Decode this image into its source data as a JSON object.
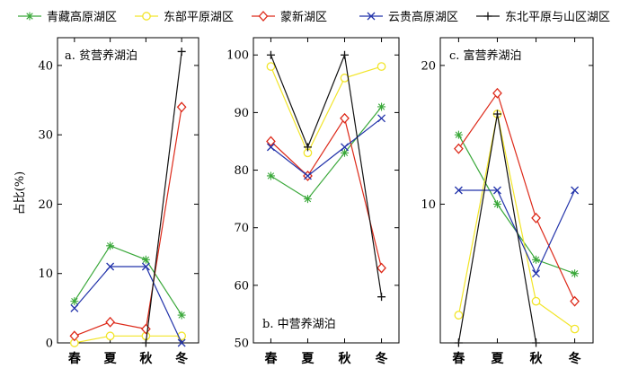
{
  "legend": [
    {
      "name": "青藏高原湖区",
      "color": "#3aa83a",
      "marker": "asterisk"
    },
    {
      "name": "东部平原湖区",
      "color": "#f2e52a",
      "marker": "circle"
    },
    {
      "name": "蒙新湖区",
      "color": "#dd2a1a",
      "marker": "diamond"
    },
    {
      "name": "云贵高原湖区",
      "color": "#2233aa",
      "marker": "x"
    },
    {
      "name": "东北平原与山区湖区",
      "color": "#111111",
      "marker": "plus"
    }
  ],
  "ylabel": "占比(%)",
  "chart_data": [
    {
      "type": "line",
      "title": "a. 贫营养湖泊",
      "categories": [
        "春",
        "夏",
        "秋",
        "冬"
      ],
      "ylim": [
        0,
        44
      ],
      "yticks": [
        0,
        10,
        20,
        30,
        40
      ],
      "series": [
        {
          "name": "青藏高原湖区",
          "values": [
            6,
            14,
            12,
            4
          ]
        },
        {
          "name": "东部平原湖区",
          "values": [
            0,
            1,
            1,
            1
          ]
        },
        {
          "name": "蒙新湖区",
          "values": [
            1,
            3,
            2,
            34
          ]
        },
        {
          "name": "云贵高原湖区",
          "values": [
            5,
            11,
            11,
            0
          ]
        },
        {
          "name": "东北平原与山区湖区",
          "values": [
            null,
            null,
            0,
            42
          ]
        }
      ]
    },
    {
      "type": "line",
      "title": "b. 中营养湖泊",
      "categories": [
        "春",
        "夏",
        "秋",
        "冬"
      ],
      "ylim": [
        50,
        103
      ],
      "yticks": [
        50,
        60,
        70,
        80,
        90,
        100
      ],
      "series": [
        {
          "name": "青藏高原湖区",
          "values": [
            79,
            75,
            83,
            91
          ]
        },
        {
          "name": "东部平原湖区",
          "values": [
            98,
            83,
            96,
            98
          ]
        },
        {
          "name": "蒙新湖区",
          "values": [
            85,
            79,
            89,
            63
          ]
        },
        {
          "name": "云贵高原湖区",
          "values": [
            84,
            79,
            84,
            89
          ]
        },
        {
          "name": "东北平原与山区湖区",
          "values": [
            100,
            84,
            100,
            58
          ]
        }
      ]
    },
    {
      "type": "line",
      "title": "c. 富营养湖泊",
      "categories": [
        "春",
        "夏",
        "秋",
        "冬"
      ],
      "ylim": [
        0,
        22
      ],
      "yticks": [
        10,
        20
      ],
      "series": [
        {
          "name": "青藏高原湖区",
          "values": [
            15,
            10,
            6,
            5
          ]
        },
        {
          "name": "东部平原湖区",
          "values": [
            2,
            16.5,
            3,
            1
          ]
        },
        {
          "name": "蒙新湖区",
          "values": [
            14,
            18,
            9,
            3
          ]
        },
        {
          "name": "云贵高原湖区",
          "values": [
            11,
            11,
            5,
            11
          ]
        },
        {
          "name": "东北平原与山区湖区",
          "values": [
            0,
            16.5,
            0,
            null
          ]
        }
      ]
    }
  ]
}
